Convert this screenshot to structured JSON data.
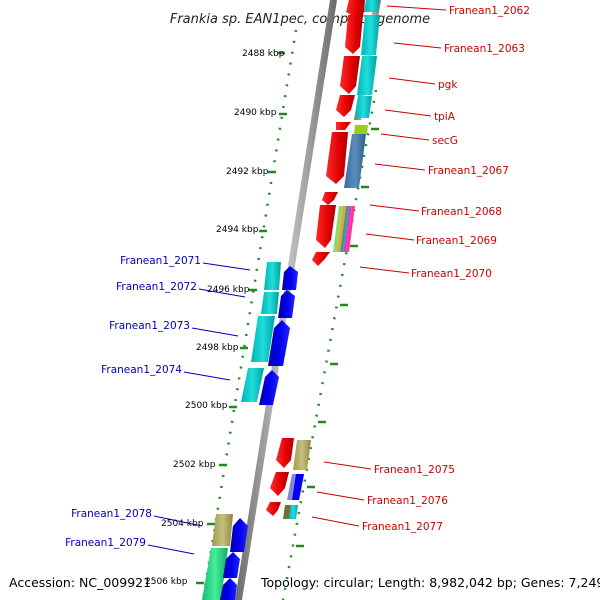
{
  "title": "Frankia sp. EAN1pec, complete genome",
  "footer": {
    "accession": "Accession: NC_009921",
    "summary": "Topology: circular; Length: 8,982,042 bp; Genes: 7,249"
  },
  "scale_ticks": [
    {
      "label": "2488 kbp"
    },
    {
      "label": "2490 kbp"
    },
    {
      "label": "2492 kbp"
    },
    {
      "label": "2494 kbp"
    },
    {
      "label": "2496 kbp"
    },
    {
      "label": "2498 kbp"
    },
    {
      "label": "2500 kbp"
    },
    {
      "label": "2502 kbp"
    },
    {
      "label": "2504 kbp"
    },
    {
      "label": "2506 kbp"
    }
  ],
  "forward_genes": [
    {
      "label": "Franean1_2062"
    },
    {
      "label": "Franean1_2063"
    },
    {
      "label": "pgk"
    },
    {
      "label": "tpiA"
    },
    {
      "label": "secG"
    },
    {
      "label": "Franean1_2067"
    },
    {
      "label": "Franean1_2068"
    },
    {
      "label": "Franean1_2069"
    },
    {
      "label": "Franean1_2070"
    },
    {
      "label": "Franean1_2075"
    },
    {
      "label": "Franean1_2076"
    },
    {
      "label": "Franean1_2077"
    }
  ],
  "reverse_genes": [
    {
      "label": "Franean1_2071"
    },
    {
      "label": "Franean1_2072"
    },
    {
      "label": "Franean1_2073"
    },
    {
      "label": "Franean1_2074"
    },
    {
      "label": "Franean1_2078"
    },
    {
      "label": "Franean1_2079"
    }
  ],
  "colors": {
    "forward_gene": "#ff0000",
    "reverse_gene": "#0000ff",
    "cyan_domain": "#00cccc",
    "steel_domain": "#4477aa",
    "olive_domain": "#b0a860",
    "lime_domain": "#99cc22",
    "green_domain": "#22cc88",
    "axis": "#999999",
    "tick": "#228822",
    "label_forward": "#cc0000",
    "label_reverse": "#0000bb"
  }
}
